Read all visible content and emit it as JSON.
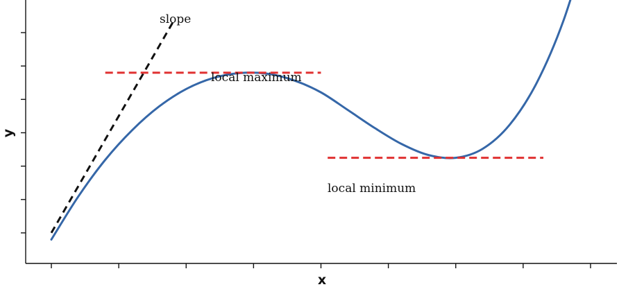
{
  "chart_data": {
    "type": "line",
    "xlabel": "x",
    "ylabel": "y",
    "grid": false,
    "tick_labels_shown": false,
    "xlim": [
      0,
      8
    ],
    "ylim": [
      0,
      7
    ],
    "x_ticks": [
      0,
      1,
      2,
      3,
      4,
      5,
      6,
      7,
      8
    ],
    "y_ticks": [
      0.5,
      1.5,
      2.5,
      3.5,
      4.5,
      5.5,
      6.5
    ],
    "series": [
      {
        "color": "#3567a8",
        "x": [
          0,
          0.4,
          0.8,
          1.2,
          1.6,
          2.0,
          2.4,
          2.8,
          3.2,
          3.6,
          4.0,
          4.4,
          4.8,
          5.2,
          5.6,
          6.0,
          6.4,
          6.8,
          7.2,
          7.6,
          8.0
        ],
        "y": [
          0.3,
          1.59,
          2.69,
          3.58,
          4.29,
          4.81,
          5.14,
          5.29,
          5.27,
          5.07,
          4.71,
          4.18,
          3.64,
          3.16,
          2.83,
          2.75,
          3.02,
          3.74,
          4.99,
          6.87,
          9.47
        ]
      }
    ],
    "annotations": [
      {
        "text": "slope",
        "style": "dashed",
        "color": "#111111",
        "x1": 0.0,
        "y1": 0.5,
        "x2": 1.8,
        "y2": 6.8
      },
      {
        "text": "local  maximum",
        "style": "dashed",
        "color": "#e03030",
        "x1": 0.8,
        "y1": 5.3,
        "x2": 4.0,
        "y2": 5.3
      },
      {
        "text": "local  minimum",
        "style": "dashed",
        "color": "#e03030",
        "x1": 4.1,
        "y1": 2.75,
        "x2": 7.3,
        "y2": 2.75
      }
    ]
  }
}
